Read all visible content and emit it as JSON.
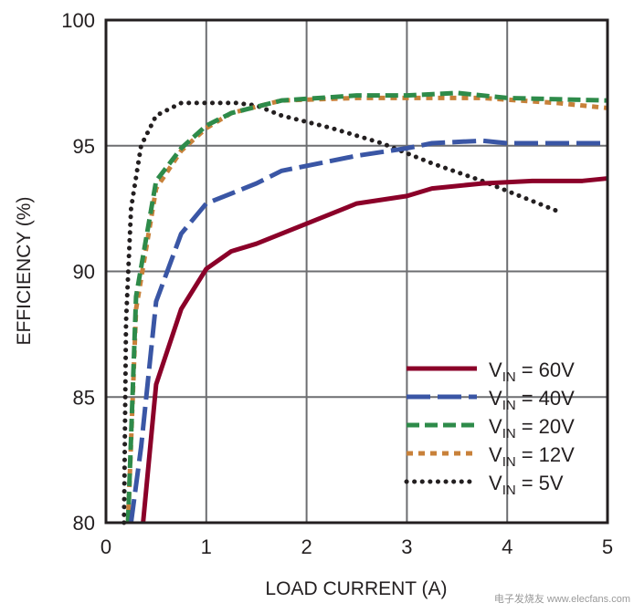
{
  "chart_data": {
    "type": "line",
    "title": "",
    "xlabel": "LOAD CURRENT (A)",
    "ylabel": "EFFICIENCY (%)",
    "xlim": [
      0,
      5
    ],
    "ylim": [
      80,
      100
    ],
    "xticks": [
      "0",
      "1",
      "2",
      "3",
      "4",
      "5"
    ],
    "yticks": [
      "80",
      "85",
      "90",
      "95",
      "100"
    ],
    "grid": true,
    "legend_position": "bottom-right",
    "series": [
      {
        "name": "60V",
        "label_prefix": "V",
        "label_sub": "IN",
        "color": "#8b0029",
        "style": "solid",
        "x": [
          0.37,
          0.5,
          0.75,
          1,
          1.25,
          1.5,
          2,
          2.5,
          3,
          3.25,
          3.75,
          4.25,
          4.75,
          5
        ],
        "y": [
          80,
          85.5,
          88.5,
          90.1,
          90.8,
          91.1,
          91.9,
          92.7,
          93,
          93.3,
          93.5,
          93.6,
          93.6,
          93.7
        ]
      },
      {
        "name": "40V",
        "label_prefix": "V",
        "label_sub": "IN",
        "color": "#3a56a5",
        "style": "longdash",
        "x": [
          0.25,
          0.35,
          0.5,
          0.75,
          1,
          1.5,
          1.75,
          2.5,
          3,
          3.25,
          3.75,
          4,
          5
        ],
        "y": [
          80,
          83,
          88.8,
          91.5,
          92.7,
          93.5,
          94,
          94.6,
          94.9,
          95.1,
          95.2,
          95.1,
          95.1
        ]
      },
      {
        "name": "20V",
        "label_prefix": "V",
        "label_sub": "IN",
        "color": "#2e8b4a",
        "style": "dash",
        "x": [
          0.22,
          0.3,
          0.5,
          0.75,
          1,
          1.25,
          1.75,
          2.5,
          3,
          3.5,
          4,
          5
        ],
        "y": [
          80,
          89,
          93.6,
          94.9,
          95.8,
          96.3,
          96.8,
          97,
          97,
          97.1,
          96.9,
          96.8
        ]
      },
      {
        "name": "12V",
        "label_prefix": "V",
        "label_sub": "IN",
        "color": "#c8813a",
        "style": "shortdash",
        "x": [
          0.22,
          0.3,
          0.5,
          0.75,
          1,
          1.25,
          1.75,
          2.5,
          3,
          3.75,
          4.5,
          5
        ],
        "y": [
          80,
          88.5,
          93.3,
          94.8,
          95.7,
          96.3,
          96.8,
          96.9,
          96.9,
          96.9,
          96.7,
          96.5
        ]
      },
      {
        "name": "5V",
        "label_prefix": "V",
        "label_sub": "IN",
        "color": "#231f20",
        "style": "dotted",
        "x": [
          0.18,
          0.2,
          0.25,
          0.35,
          0.5,
          0.75,
          1,
          1.3,
          1.5,
          1.75,
          2.25,
          2.75,
          3.25,
          3.75,
          4.25,
          4.5
        ],
        "y": [
          80,
          88,
          92.5,
          95,
          96.2,
          96.7,
          96.7,
          96.7,
          96.6,
          96.2,
          95.7,
          95.1,
          94.3,
          93.6,
          92.8,
          92.4
        ]
      }
    ]
  },
  "legend": {
    "labels": [
      "= 60V",
      "= 40V",
      "= 20V",
      "= 12V",
      "= 5V"
    ]
  },
  "watermark": {
    "text": "电子发烧友 www.elecfans.com"
  }
}
